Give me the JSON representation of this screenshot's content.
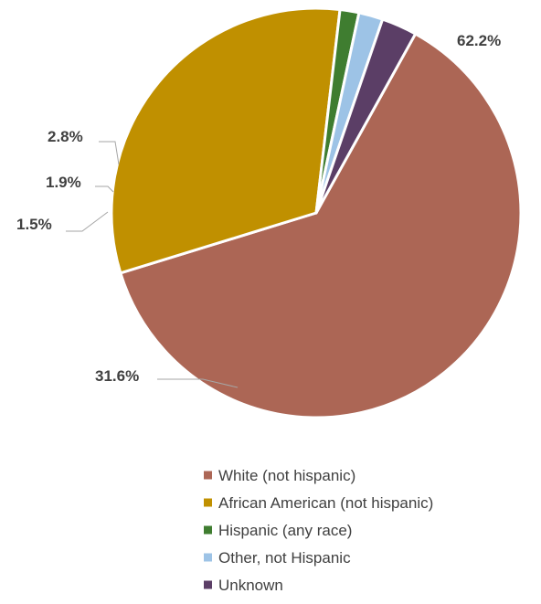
{
  "chart_data": {
    "type": "pie",
    "title": "",
    "slices": [
      {
        "label": "White (not hispanic)",
        "value": 62.2,
        "data_label": "62.2%",
        "color": "#AC6655"
      },
      {
        "label": "African American (not hispanic)",
        "value": 31.6,
        "data_label": "31.6%",
        "color": "#C09000"
      },
      {
        "label": "Hispanic (any race)",
        "value": 1.5,
        "data_label": "1.5%",
        "color": "#3F7D30"
      },
      {
        "label": "Other, not Hispanic",
        "value": 1.9,
        "data_label": "1.9%",
        "color": "#9DC3E6"
      },
      {
        "label": "Unknown",
        "value": 2.8,
        "data_label": "2.8%",
        "color": "#5B3E66"
      }
    ],
    "start_angle_degrees": 29,
    "direction": "clockwise",
    "legend": {
      "position": "bottom"
    }
  }
}
